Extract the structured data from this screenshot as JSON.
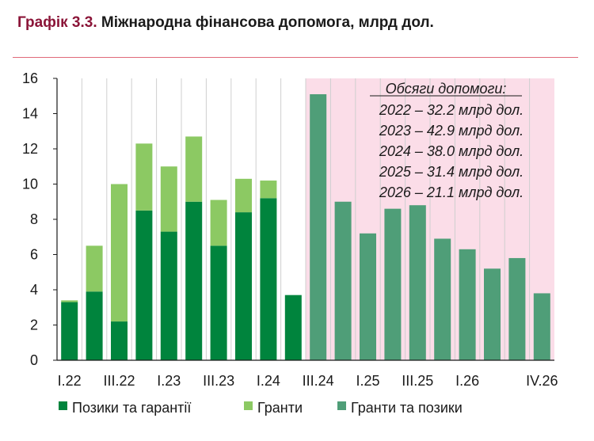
{
  "header": {
    "prefix": "Графік 3.3.",
    "title": "Міжнародна фінансова допомога, млрд дол."
  },
  "colors": {
    "loans": "#00843d",
    "grants": "#8cc963",
    "forecast": "#4f9e78",
    "forecast_bg": "#fbdde8",
    "rule": "#e06a7a"
  },
  "chart_data": {
    "type": "bar",
    "stacked": true,
    "categories": [
      "I.22",
      "II.22",
      "III.22",
      "IV.22",
      "I.23",
      "II.23",
      "III.23",
      "IV.23",
      "I.24",
      "II.24",
      "III.24",
      "IV.24",
      "I.25",
      "II.25",
      "III.25",
      "IV.25",
      "I.26",
      "II.26",
      "III.26",
      "IV.26"
    ],
    "x_tick_labels": [
      "I.22",
      "",
      "III.22",
      "",
      "I.23",
      "",
      "III.23",
      "",
      "I.24",
      "",
      "III.24",
      "",
      "I.25",
      "",
      "III.25",
      "",
      "I.26",
      "",
      "",
      "IV.26"
    ],
    "series": [
      {
        "name": "Позики та гарантії",
        "values": [
          3.3,
          3.9,
          2.2,
          8.5,
          7.3,
          9.0,
          6.5,
          8.4,
          9.2,
          3.7,
          null,
          null,
          null,
          null,
          null,
          null,
          null,
          null,
          null,
          null
        ]
      },
      {
        "name": "Гранти",
        "values": [
          0.1,
          2.6,
          7.8,
          3.8,
          3.7,
          3.7,
          2.6,
          1.9,
          1.0,
          0.0,
          null,
          null,
          null,
          null,
          null,
          null,
          null,
          null,
          null,
          null
        ]
      },
      {
        "name": "Гранти та позики",
        "values": [
          null,
          null,
          null,
          null,
          null,
          null,
          null,
          null,
          null,
          null,
          15.1,
          9.0,
          7.2,
          8.6,
          8.8,
          6.9,
          6.3,
          5.2,
          5.8,
          3.8
        ]
      }
    ],
    "ylim": [
      0,
      16
    ],
    "yticks": [
      0,
      2,
      4,
      6,
      8,
      10,
      12,
      14,
      16
    ],
    "grid": "vertical",
    "shaded_region": {
      "from": "III.24",
      "to": "IV.26"
    },
    "annotation": {
      "heading": "Обсяги допомоги:",
      "lines": [
        "2022 – 32.2 млрд дол.",
        "2023 – 42.9 млрд дол.",
        "2024 – 38.0 млрд дол.",
        "2025 – 31.4 млрд дол.",
        "2026 – 21.1 млрд дол."
      ]
    },
    "legend_position": "bottom"
  }
}
